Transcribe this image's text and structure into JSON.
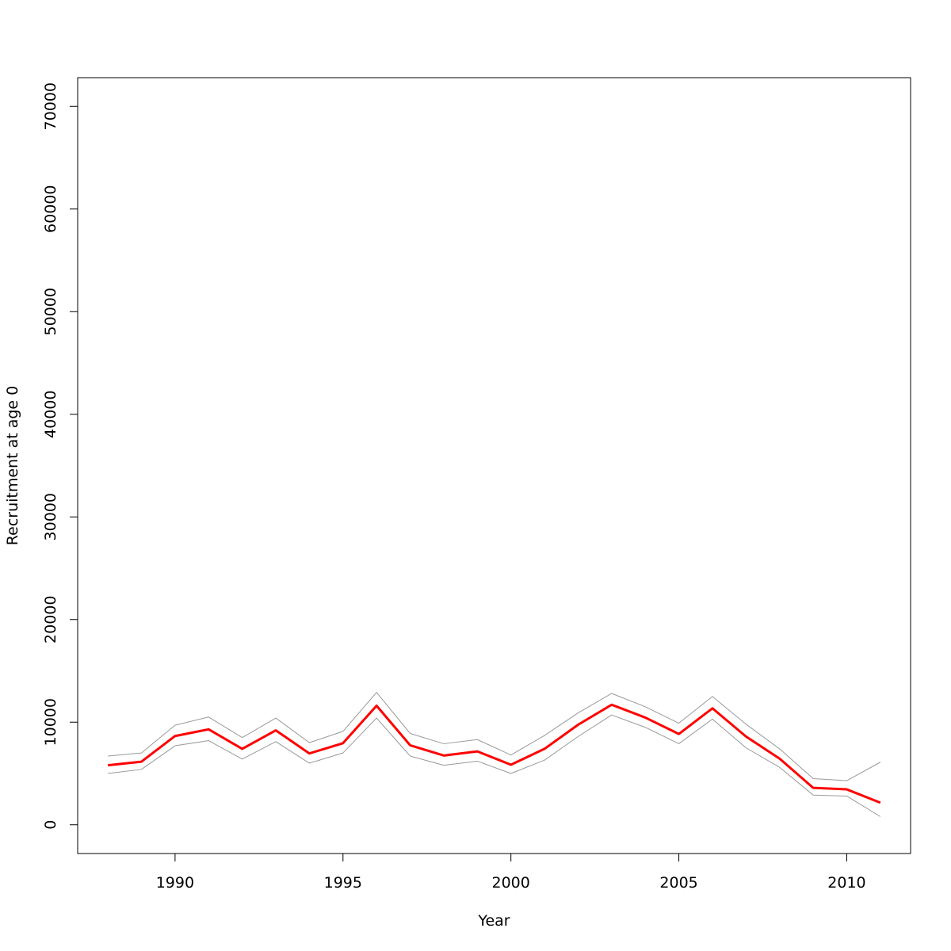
{
  "chart_data": {
    "type": "line",
    "title": "",
    "xlabel": "Year",
    "ylabel": "Recruitment at age 0",
    "xlim": [
      1987.1,
      2011.9
    ],
    "ylim": [
      -2800,
      72800
    ],
    "xticks": [
      1990,
      1995,
      2000,
      2005,
      2010
    ],
    "yticks": [
      0,
      10000,
      20000,
      30000,
      40000,
      50000,
      60000,
      70000
    ],
    "grid": false,
    "legend": "none",
    "x": [
      1988,
      1989,
      1990,
      1991,
      1992,
      1993,
      1994,
      1995,
      1996,
      1997,
      1998,
      1999,
      2000,
      2001,
      2002,
      2003,
      2004,
      2005,
      2006,
      2007,
      2008,
      2009,
      2010,
      2011
    ],
    "series": [
      {
        "role": "upper",
        "color": "#999999",
        "values": [
          6700,
          7000,
          9700,
          10500,
          8500,
          10400,
          8000,
          9100,
          12900,
          8900,
          7900,
          8300,
          6800,
          8700,
          10900,
          12800,
          11500,
          9900,
          12500,
          9800,
          7400,
          4500,
          4300,
          6100
        ]
      },
      {
        "role": "estimate",
        "color": "#ff0000",
        "values": [
          5800,
          6150,
          8650,
          9300,
          7400,
          9200,
          6950,
          7950,
          11600,
          7750,
          6750,
          7150,
          5850,
          7400,
          9750,
          11700,
          10450,
          8850,
          11350,
          8600,
          6450,
          3600,
          3450,
          2150
        ]
      },
      {
        "role": "lower",
        "color": "#999999",
        "values": [
          5000,
          5400,
          7700,
          8200,
          6400,
          8100,
          6000,
          7000,
          10400,
          6700,
          5800,
          6200,
          5000,
          6300,
          8600,
          10700,
          9500,
          7900,
          10300,
          7500,
          5600,
          2900,
          2800,
          800
        ]
      }
    ]
  }
}
